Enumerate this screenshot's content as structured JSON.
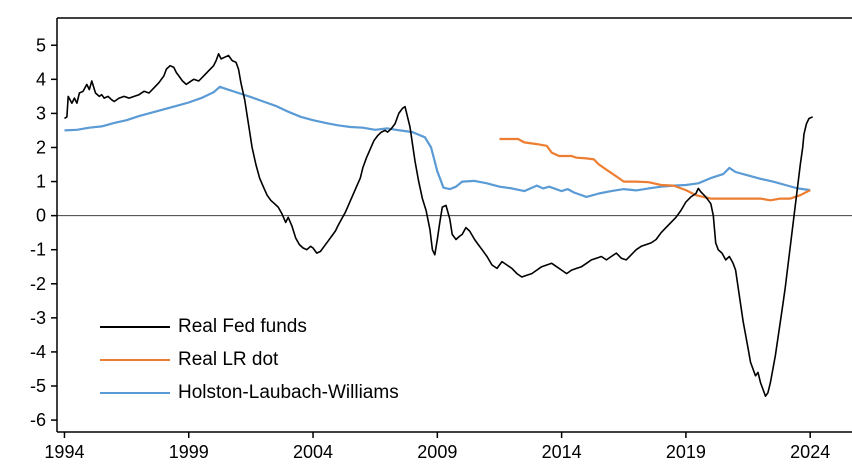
{
  "chart_data": {
    "type": "line",
    "title": "",
    "xlabel": "",
    "ylabel": "",
    "x_range": [
      1993.7,
      2025.4
    ],
    "y_range": [
      -6.35,
      5.8
    ],
    "x_ticks": [
      1994,
      1999,
      2004,
      2009,
      2014,
      2019,
      2024
    ],
    "y_ticks": [
      -6,
      -5,
      -4,
      -3,
      -2,
      -1,
      0,
      1,
      2,
      3,
      4,
      5
    ],
    "grid": false,
    "zero_line": true,
    "legend_position": "bottom-left",
    "series": [
      {
        "name": "Real Fed funds",
        "color": "#000000",
        "width": 1.6,
        "points": [
          [
            1994.0,
            2.85
          ],
          [
            1994.1,
            2.9
          ],
          [
            1994.15,
            3.5
          ],
          [
            1994.3,
            3.3
          ],
          [
            1994.4,
            3.45
          ],
          [
            1994.5,
            3.3
          ],
          [
            1994.6,
            3.6
          ],
          [
            1994.75,
            3.65
          ],
          [
            1994.9,
            3.85
          ],
          [
            1995.0,
            3.7
          ],
          [
            1995.1,
            3.95
          ],
          [
            1995.25,
            3.6
          ],
          [
            1995.4,
            3.5
          ],
          [
            1995.5,
            3.55
          ],
          [
            1995.6,
            3.45
          ],
          [
            1995.75,
            3.5
          ],
          [
            1995.9,
            3.4
          ],
          [
            1996.0,
            3.35
          ],
          [
            1996.2,
            3.45
          ],
          [
            1996.4,
            3.5
          ],
          [
            1996.6,
            3.45
          ],
          [
            1996.8,
            3.5
          ],
          [
            1997.0,
            3.55
          ],
          [
            1997.2,
            3.65
          ],
          [
            1997.4,
            3.6
          ],
          [
            1997.6,
            3.75
          ],
          [
            1997.8,
            3.9
          ],
          [
            1998.0,
            4.1
          ],
          [
            1998.1,
            4.3
          ],
          [
            1998.25,
            4.4
          ],
          [
            1998.4,
            4.35
          ],
          [
            1998.5,
            4.2
          ],
          [
            1998.6,
            4.1
          ],
          [
            1998.75,
            3.95
          ],
          [
            1998.9,
            3.85
          ],
          [
            1999.0,
            3.9
          ],
          [
            1999.2,
            4.0
          ],
          [
            1999.4,
            3.95
          ],
          [
            1999.6,
            4.1
          ],
          [
            1999.8,
            4.25
          ],
          [
            2000.0,
            4.4
          ],
          [
            2000.1,
            4.55
          ],
          [
            2000.2,
            4.75
          ],
          [
            2000.3,
            4.6
          ],
          [
            2000.45,
            4.65
          ],
          [
            2000.6,
            4.7
          ],
          [
            2000.75,
            4.55
          ],
          [
            2000.9,
            4.5
          ],
          [
            2001.0,
            4.3
          ],
          [
            2001.1,
            3.9
          ],
          [
            2001.25,
            3.4
          ],
          [
            2001.4,
            2.7
          ],
          [
            2001.55,
            2.0
          ],
          [
            2001.7,
            1.5
          ],
          [
            2001.85,
            1.1
          ],
          [
            2002.0,
            0.85
          ],
          [
            2002.15,
            0.6
          ],
          [
            2002.3,
            0.45
          ],
          [
            2002.45,
            0.35
          ],
          [
            2002.6,
            0.25
          ],
          [
            2002.75,
            0.05
          ],
          [
            2002.9,
            -0.2
          ],
          [
            2003.0,
            -0.05
          ],
          [
            2003.15,
            -0.3
          ],
          [
            2003.3,
            -0.65
          ],
          [
            2003.45,
            -0.85
          ],
          [
            2003.6,
            -0.95
          ],
          [
            2003.75,
            -1.0
          ],
          [
            2003.9,
            -0.9
          ],
          [
            2004.0,
            -0.95
          ],
          [
            2004.15,
            -1.1
          ],
          [
            2004.3,
            -1.05
          ],
          [
            2004.45,
            -0.9
          ],
          [
            2004.6,
            -0.75
          ],
          [
            2004.75,
            -0.6
          ],
          [
            2004.9,
            -0.45
          ],
          [
            2005.0,
            -0.3
          ],
          [
            2005.15,
            -0.1
          ],
          [
            2005.3,
            0.1
          ],
          [
            2005.45,
            0.35
          ],
          [
            2005.6,
            0.6
          ],
          [
            2005.75,
            0.85
          ],
          [
            2005.9,
            1.1
          ],
          [
            2006.0,
            1.4
          ],
          [
            2006.15,
            1.7
          ],
          [
            2006.3,
            1.95
          ],
          [
            2006.45,
            2.2
          ],
          [
            2006.6,
            2.35
          ],
          [
            2006.75,
            2.45
          ],
          [
            2006.9,
            2.5
          ],
          [
            2007.0,
            2.45
          ],
          [
            2007.15,
            2.55
          ],
          [
            2007.3,
            2.7
          ],
          [
            2007.45,
            3.0
          ],
          [
            2007.6,
            3.15
          ],
          [
            2007.7,
            3.2
          ],
          [
            2007.8,
            2.9
          ],
          [
            2007.9,
            2.6
          ],
          [
            2008.0,
            2.1
          ],
          [
            2008.1,
            1.6
          ],
          [
            2008.25,
            1.0
          ],
          [
            2008.4,
            0.5
          ],
          [
            2008.55,
            0.15
          ],
          [
            2008.7,
            -0.4
          ],
          [
            2008.8,
            -1.0
          ],
          [
            2008.9,
            -1.15
          ],
          [
            2009.0,
            -0.7
          ],
          [
            2009.1,
            -0.2
          ],
          [
            2009.2,
            0.25
          ],
          [
            2009.35,
            0.3
          ],
          [
            2009.5,
            -0.1
          ],
          [
            2009.6,
            -0.55
          ],
          [
            2009.75,
            -0.7
          ],
          [
            2009.9,
            -0.6
          ],
          [
            2010.0,
            -0.55
          ],
          [
            2010.15,
            -0.35
          ],
          [
            2010.3,
            -0.45
          ],
          [
            2010.5,
            -0.7
          ],
          [
            2010.65,
            -0.85
          ],
          [
            2010.8,
            -1.0
          ],
          [
            2011.0,
            -1.2
          ],
          [
            2011.2,
            -1.45
          ],
          [
            2011.4,
            -1.55
          ],
          [
            2011.6,
            -1.35
          ],
          [
            2011.8,
            -1.45
          ],
          [
            2012.0,
            -1.55
          ],
          [
            2012.2,
            -1.7
          ],
          [
            2012.4,
            -1.8
          ],
          [
            2012.6,
            -1.75
          ],
          [
            2012.8,
            -1.7
          ],
          [
            2013.0,
            -1.6
          ],
          [
            2013.2,
            -1.5
          ],
          [
            2013.4,
            -1.45
          ],
          [
            2013.6,
            -1.4
          ],
          [
            2013.8,
            -1.5
          ],
          [
            2014.0,
            -1.6
          ],
          [
            2014.2,
            -1.7
          ],
          [
            2014.4,
            -1.6
          ],
          [
            2014.6,
            -1.55
          ],
          [
            2014.8,
            -1.5
          ],
          [
            2015.0,
            -1.4
          ],
          [
            2015.2,
            -1.3
          ],
          [
            2015.4,
            -1.25
          ],
          [
            2015.6,
            -1.2
          ],
          [
            2015.8,
            -1.3
          ],
          [
            2016.0,
            -1.2
          ],
          [
            2016.2,
            -1.1
          ],
          [
            2016.4,
            -1.25
          ],
          [
            2016.6,
            -1.3
          ],
          [
            2016.8,
            -1.15
          ],
          [
            2017.0,
            -1.0
          ],
          [
            2017.2,
            -0.9
          ],
          [
            2017.4,
            -0.85
          ],
          [
            2017.6,
            -0.8
          ],
          [
            2017.8,
            -0.7
          ],
          [
            2018.0,
            -0.5
          ],
          [
            2018.2,
            -0.35
          ],
          [
            2018.4,
            -0.2
          ],
          [
            2018.6,
            -0.05
          ],
          [
            2018.8,
            0.15
          ],
          [
            2019.0,
            0.4
          ],
          [
            2019.2,
            0.55
          ],
          [
            2019.4,
            0.65
          ],
          [
            2019.5,
            0.8
          ],
          [
            2019.6,
            0.7
          ],
          [
            2019.8,
            0.55
          ],
          [
            2019.9,
            0.45
          ],
          [
            2020.0,
            0.35
          ],
          [
            2020.1,
            0.0
          ],
          [
            2020.2,
            -0.8
          ],
          [
            2020.3,
            -1.0
          ],
          [
            2020.45,
            -1.1
          ],
          [
            2020.6,
            -1.3
          ],
          [
            2020.75,
            -1.2
          ],
          [
            2020.9,
            -1.4
          ],
          [
            2021.0,
            -1.6
          ],
          [
            2021.1,
            -2.1
          ],
          [
            2021.2,
            -2.6
          ],
          [
            2021.3,
            -3.1
          ],
          [
            2021.4,
            -3.5
          ],
          [
            2021.5,
            -3.9
          ],
          [
            2021.6,
            -4.3
          ],
          [
            2021.7,
            -4.5
          ],
          [
            2021.8,
            -4.7
          ],
          [
            2021.9,
            -4.6
          ],
          [
            2022.0,
            -4.9
          ],
          [
            2022.1,
            -5.1
          ],
          [
            2022.2,
            -5.3
          ],
          [
            2022.3,
            -5.2
          ],
          [
            2022.4,
            -4.9
          ],
          [
            2022.5,
            -4.5
          ],
          [
            2022.6,
            -4.1
          ],
          [
            2022.7,
            -3.6
          ],
          [
            2022.8,
            -3.1
          ],
          [
            2022.9,
            -2.6
          ],
          [
            2023.0,
            -2.1
          ],
          [
            2023.1,
            -1.5
          ],
          [
            2023.2,
            -0.9
          ],
          [
            2023.3,
            -0.3
          ],
          [
            2023.4,
            0.3
          ],
          [
            2023.5,
            0.9
          ],
          [
            2023.6,
            1.5
          ],
          [
            2023.7,
            2.0
          ],
          [
            2023.75,
            2.4
          ],
          [
            2023.85,
            2.7
          ],
          [
            2023.95,
            2.85
          ],
          [
            2024.1,
            2.9
          ]
        ]
      },
      {
        "name": "Real LR dot",
        "color": "#ED7D31",
        "width": 2.2,
        "points": [
          [
            2011.5,
            2.25
          ],
          [
            2012.25,
            2.25
          ],
          [
            2012.5,
            2.15
          ],
          [
            2013.0,
            2.1
          ],
          [
            2013.4,
            2.05
          ],
          [
            2013.6,
            1.85
          ],
          [
            2013.9,
            1.75
          ],
          [
            2014.4,
            1.75
          ],
          [
            2014.6,
            1.7
          ],
          [
            2015.0,
            1.68
          ],
          [
            2015.3,
            1.65
          ],
          [
            2015.5,
            1.5
          ],
          [
            2015.9,
            1.3
          ],
          [
            2016.2,
            1.15
          ],
          [
            2016.5,
            1.0
          ],
          [
            2017.0,
            1.0
          ],
          [
            2017.5,
            0.98
          ],
          [
            2018.0,
            0.9
          ],
          [
            2018.5,
            0.88
          ],
          [
            2019.0,
            0.75
          ],
          [
            2019.4,
            0.6
          ],
          [
            2019.7,
            0.55
          ],
          [
            2020.0,
            0.5
          ],
          [
            2021.0,
            0.5
          ],
          [
            2022.0,
            0.5
          ],
          [
            2022.4,
            0.45
          ],
          [
            2022.8,
            0.5
          ],
          [
            2023.2,
            0.5
          ],
          [
            2023.6,
            0.6
          ],
          [
            2024.0,
            0.75
          ]
        ]
      },
      {
        "name": "Holston-Laubach-Williams",
        "color": "#5B9BD5",
        "width": 2.2,
        "points": [
          [
            1994.0,
            2.5
          ],
          [
            1994.5,
            2.52
          ],
          [
            1995.0,
            2.58
          ],
          [
            1995.5,
            2.62
          ],
          [
            1996.0,
            2.72
          ],
          [
            1996.5,
            2.8
          ],
          [
            1997.0,
            2.92
          ],
          [
            1997.5,
            3.02
          ],
          [
            1998.0,
            3.12
          ],
          [
            1998.5,
            3.22
          ],
          [
            1999.0,
            3.32
          ],
          [
            1999.5,
            3.45
          ],
          [
            2000.0,
            3.62
          ],
          [
            2000.25,
            3.78
          ],
          [
            2000.5,
            3.72
          ],
          [
            2001.0,
            3.6
          ],
          [
            2001.5,
            3.48
          ],
          [
            2002.0,
            3.35
          ],
          [
            2002.5,
            3.22
          ],
          [
            2003.0,
            3.05
          ],
          [
            2003.5,
            2.9
          ],
          [
            2004.0,
            2.8
          ],
          [
            2004.5,
            2.72
          ],
          [
            2005.0,
            2.65
          ],
          [
            2005.5,
            2.6
          ],
          [
            2006.0,
            2.58
          ],
          [
            2006.5,
            2.52
          ],
          [
            2007.0,
            2.56
          ],
          [
            2007.5,
            2.5
          ],
          [
            2008.0,
            2.45
          ],
          [
            2008.5,
            2.3
          ],
          [
            2008.75,
            2.0
          ],
          [
            2009.0,
            1.3
          ],
          [
            2009.25,
            0.82
          ],
          [
            2009.5,
            0.78
          ],
          [
            2009.75,
            0.85
          ],
          [
            2010.0,
            1.0
          ],
          [
            2010.5,
            1.02
          ],
          [
            2011.0,
            0.95
          ],
          [
            2011.5,
            0.85
          ],
          [
            2012.0,
            0.8
          ],
          [
            2012.5,
            0.72
          ],
          [
            2013.0,
            0.88
          ],
          [
            2013.25,
            0.8
          ],
          [
            2013.5,
            0.85
          ],
          [
            2014.0,
            0.72
          ],
          [
            2014.25,
            0.78
          ],
          [
            2014.5,
            0.68
          ],
          [
            2015.0,
            0.55
          ],
          [
            2015.5,
            0.65
          ],
          [
            2016.0,
            0.72
          ],
          [
            2016.5,
            0.78
          ],
          [
            2017.0,
            0.74
          ],
          [
            2017.5,
            0.8
          ],
          [
            2018.0,
            0.85
          ],
          [
            2018.5,
            0.88
          ],
          [
            2019.0,
            0.9
          ],
          [
            2019.5,
            0.95
          ],
          [
            2020.0,
            1.1
          ],
          [
            2020.5,
            1.22
          ],
          [
            2020.75,
            1.4
          ],
          [
            2021.0,
            1.28
          ],
          [
            2021.5,
            1.18
          ],
          [
            2022.0,
            1.08
          ],
          [
            2022.5,
            1.0
          ],
          [
            2023.0,
            0.9
          ],
          [
            2023.5,
            0.8
          ],
          [
            2024.0,
            0.75
          ]
        ]
      }
    ],
    "axis_color": "#000000",
    "zero_line_color": "#404040"
  }
}
